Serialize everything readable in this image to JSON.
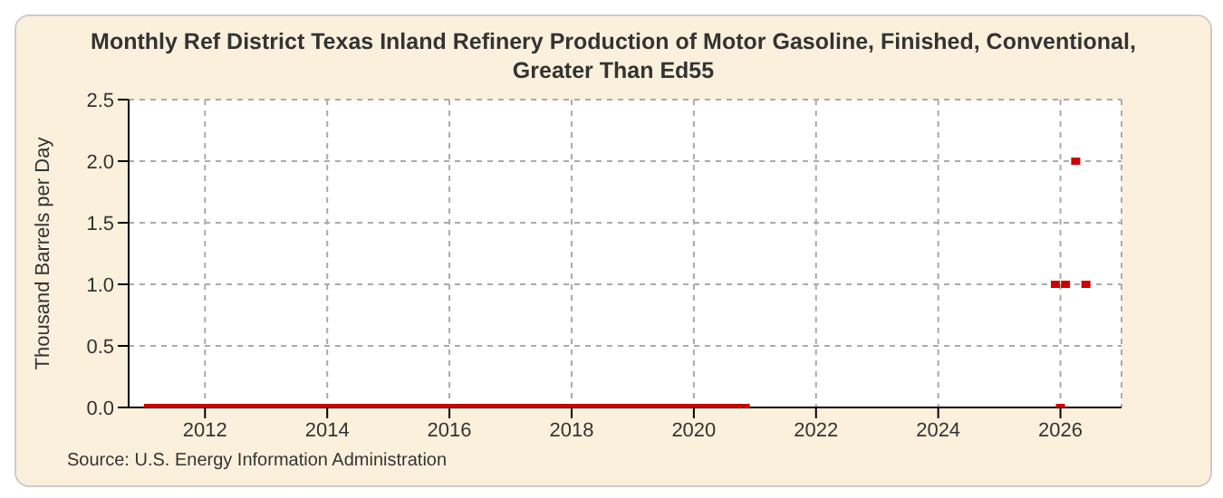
{
  "chart_data": {
    "type": "scatter",
    "title": "Monthly Ref District Texas Inland Refinery Production of Motor Gasoline, Finished, Conventional, Greater Than Ed55",
    "ylabel": "Thousand Barrels per Day",
    "annotations": [
      "Source: U.S. Energy Information Administration"
    ],
    "xlim": [
      "2010-10",
      "2027-01"
    ],
    "xticks": [
      "2012",
      "2014",
      "2016",
      "2018",
      "2020",
      "2022",
      "2024",
      "2026"
    ],
    "ylim": [
      0,
      2.5
    ],
    "yticks": [
      {
        "value": 0,
        "label": "0.0"
      },
      0.5,
      {
        "value": 1,
        "label": "1.0"
      },
      1.5,
      {
        "value": 2,
        "label": "2.0"
      },
      2.5
    ],
    "grid": true,
    "legend": false,
    "series": [
      {
        "color": "#cc0000",
        "x": [
          "2011-01",
          "2011-02",
          "2011-03",
          "2011-04",
          "2011-05",
          "2011-06",
          "2011-07",
          "2011-08",
          "2011-09",
          "2011-10",
          "2011-11",
          "2011-12",
          "2012-01",
          "2012-02",
          "2012-03",
          "2012-04",
          "2012-05",
          "2012-06",
          "2012-07",
          "2012-08",
          "2012-09",
          "2012-10",
          "2012-11",
          "2012-12",
          "2013-01",
          "2013-02",
          "2013-03",
          "2013-04",
          "2013-05",
          "2013-06",
          "2013-07",
          "2013-08",
          "2013-09",
          "2013-10",
          "2013-11",
          "2013-12",
          "2014-01",
          "2014-02",
          "2014-03",
          "2014-04",
          "2014-05",
          "2014-06",
          "2014-07",
          "2014-08",
          "2014-09",
          "2014-10",
          "2014-11",
          "2014-12",
          "2015-01",
          "2015-02",
          "2015-03",
          "2015-04",
          "2015-05",
          "2015-06",
          "2015-07",
          "2015-08",
          "2015-09",
          "2015-10",
          "2015-11",
          "2015-12",
          "2016-01",
          "2016-02",
          "2016-03",
          "2016-04",
          "2016-05",
          "2016-06",
          "2016-07",
          "2016-08",
          "2016-09",
          "2016-10",
          "2016-11",
          "2016-12",
          "2017-01",
          "2017-02",
          "2017-03",
          "2017-04",
          "2017-05",
          "2017-06",
          "2017-07",
          "2017-08",
          "2017-09",
          "2017-10",
          "2017-11",
          "2017-12",
          "2018-01",
          "2018-02",
          "2018-03",
          "2018-04",
          "2018-05",
          "2018-06",
          "2018-07",
          "2018-08",
          "2018-09",
          "2018-10",
          "2018-11",
          "2018-12",
          "2019-01",
          "2019-02",
          "2019-03",
          "2019-04",
          "2019-05",
          "2019-06",
          "2019-07",
          "2019-08",
          "2019-09",
          "2019-10",
          "2019-11",
          "2019-12",
          "2020-01",
          "2020-02",
          "2020-03",
          "2020-04",
          "2020-05",
          "2020-06",
          "2020-07",
          "2020-08",
          "2020-09",
          "2020-10",
          "2020-11",
          "2020-12"
        ],
        "type": "line",
        "values": [
          0,
          0,
          0,
          0,
          0,
          0,
          0,
          0,
          0,
          0,
          0,
          0,
          0,
          0,
          0,
          0,
          0,
          0,
          0,
          0,
          0,
          0,
          0,
          0,
          0,
          0,
          0,
          0,
          0,
          0,
          0,
          0,
          0,
          0,
          0,
          0,
          0,
          0,
          0,
          0,
          0,
          0,
          0,
          0,
          0,
          0,
          0,
          0,
          0,
          0,
          0,
          0,
          0,
          0,
          0,
          0,
          0,
          0,
          0,
          0,
          0,
          0,
          0,
          0,
          0,
          0,
          0,
          0,
          0,
          0,
          0,
          0,
          0,
          0,
          0,
          0,
          0,
          0,
          0,
          0,
          0,
          0,
          0,
          0,
          0,
          0,
          0,
          0,
          0,
          0,
          0,
          0,
          0,
          0,
          0,
          0,
          0,
          0,
          0,
          0,
          0,
          0,
          0,
          0,
          0,
          0,
          0,
          0,
          0,
          0,
          0,
          0,
          0,
          0,
          0,
          0,
          0,
          0,
          0,
          0
        ],
        "marker": "none"
      },
      {
        "color": "#cc0000",
        "x": [
          "2025-12",
          "2026-01",
          "2026-02",
          "2026-04",
          "2026-06"
        ],
        "values": [
          1,
          0,
          1,
          2,
          1
        ],
        "marker": "square"
      }
    ]
  }
}
